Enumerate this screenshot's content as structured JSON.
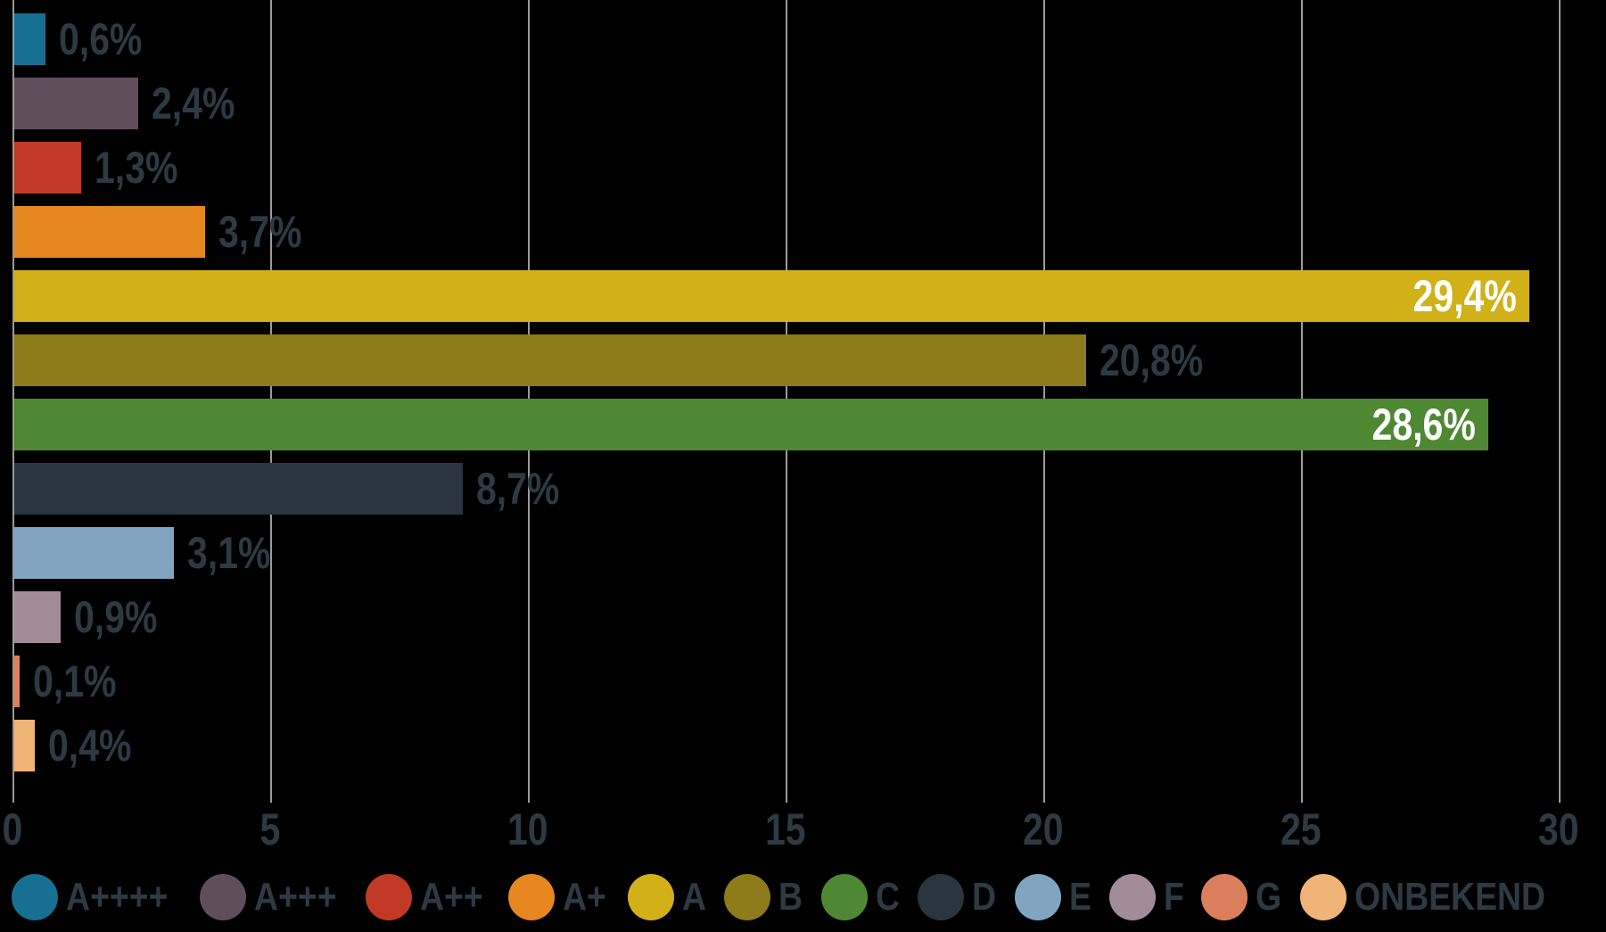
{
  "chart_data": {
    "type": "bar",
    "orientation": "horizontal",
    "title": "",
    "xlabel": "",
    "ylabel": "",
    "categories": [
      "A++++",
      "A+++",
      "A++",
      "A+",
      "A",
      "B",
      "C",
      "D",
      "E",
      "F",
      "G",
      "ONBEKEND"
    ],
    "values": [
      0.6,
      2.4,
      1.3,
      3.7,
      29.4,
      20.8,
      28.6,
      8.7,
      3.1,
      0.9,
      0.1,
      0.4
    ],
    "value_labels": [
      "0,6%",
      "2,4%",
      "1,3%",
      "3,7%",
      "29,4%",
      "20,8%",
      "28,6%",
      "8,7%",
      "3,1%",
      "0,9%",
      "0,1%",
      "0,4%"
    ],
    "colors": [
      "#176f91",
      "#604d5c",
      "#c23a25",
      "#e6871f",
      "#d1b117",
      "#8e7b19",
      "#4e8833",
      "#2a353e",
      "#81a5c1",
      "#a28c98",
      "#da7f5c",
      "#f1b477"
    ],
    "xlim": [
      0,
      30
    ],
    "xticks": [
      0,
      5,
      10,
      15,
      20,
      25,
      30
    ],
    "xtick_labels": [
      "0",
      "5",
      "10",
      "15",
      "20",
      "25",
      "30"
    ],
    "grid": "vertical-gridlines-on",
    "legend_position": "bottom",
    "legend": [
      {
        "label": "A++++",
        "color": "#176f91"
      },
      {
        "label": "A+++",
        "color": "#604d5c"
      },
      {
        "label": "A++",
        "color": "#c23a25"
      },
      {
        "label": "A+",
        "color": "#e6871f"
      },
      {
        "label": "A",
        "color": "#d1b117"
      },
      {
        "label": "B",
        "color": "#8e7b19"
      },
      {
        "label": "C",
        "color": "#4e8833"
      },
      {
        "label": "D",
        "color": "#2a353e"
      },
      {
        "label": "E",
        "color": "#81a5c1"
      },
      {
        "label": "F",
        "color": "#a28c98"
      },
      {
        "label": "G",
        "color": "#da7f5c"
      },
      {
        "label": "ONBEKEND",
        "color": "#f1b477"
      }
    ]
  },
  "styles": {
    "background_color": "#000000",
    "text_color": "#2d3a44",
    "grid_color": "#9a9a9a",
    "inside_label_color": "#ffffff"
  }
}
